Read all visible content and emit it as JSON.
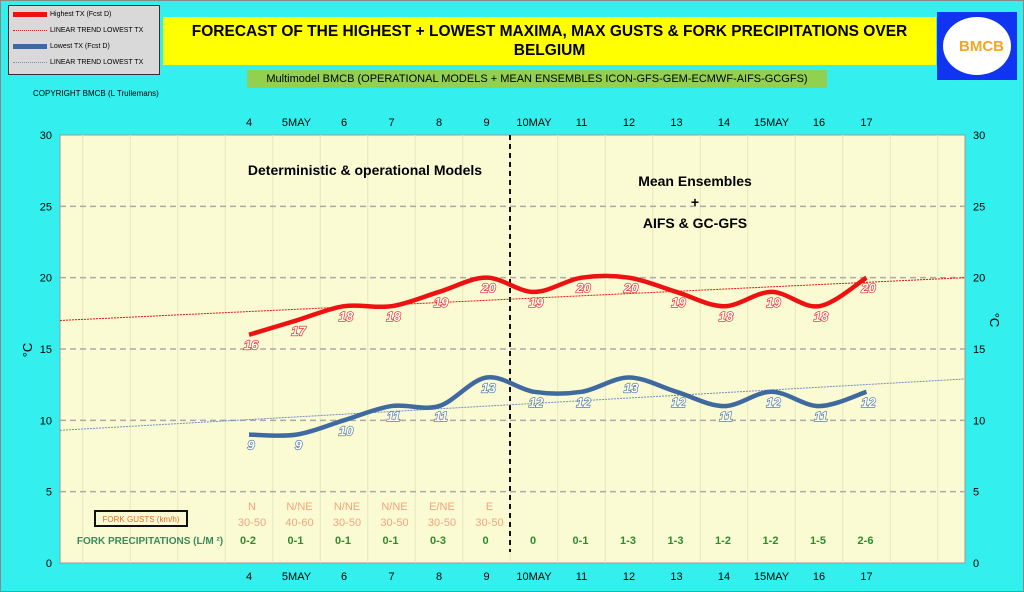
{
  "legend": [
    {
      "label": "Highest TX (Fcst D)",
      "color": "#ee1111",
      "style": "thick"
    },
    {
      "label": "LINEAR TREND LOWEST  TX",
      "color": "#ee1111",
      "style": "dotted"
    },
    {
      "label": "Lowest TX (Fcst D)",
      "color": "#3f6aa0",
      "style": "thick"
    },
    {
      "label": "LINEAR TREND LOWEST TX",
      "color": "#6f8fc0",
      "style": "dotted"
    }
  ],
  "title": "FORECAST OF THE HIGHEST + LOWEST MAXIMA, MAX GUSTS & FORK PRECIPITATIONS OVER BELGIUM",
  "logo_text": "BMCB",
  "subtitle": "Multimodel BMCB (OPERATIONAL MODELS + MEAN ENSEMBLES  ICON-GFS-GEM-ECMWF-AIFS-GCGFS)",
  "copyright": "COPYRIGHT BMCB (L Trullemans)",
  "chart_data": {
    "type": "line",
    "categories": [
      "4",
      "5MAY",
      "6",
      "7",
      "8",
      "9",
      "10MAY",
      "11",
      "12",
      "13",
      "14",
      "15MAY",
      "16",
      "17"
    ],
    "series": [
      {
        "name": "Highest TX (Fcst D)",
        "color": "#ee1111",
        "values": [
          16,
          17,
          18,
          18,
          19,
          20,
          19,
          20,
          20,
          19,
          18,
          19,
          18,
          20
        ]
      },
      {
        "name": "Lowest TX (Fcst D)",
        "color": "#3f6aa0",
        "values": [
          9,
          9,
          10,
          11,
          11,
          13,
          12,
          12,
          13,
          12,
          11,
          12,
          11,
          12
        ]
      }
    ],
    "trends": [
      {
        "color": "#ee1111",
        "start": 17,
        "end": 20
      },
      {
        "color": "#6f8fc0",
        "start": 9.3,
        "end": 12.9
      }
    ],
    "ylim": [
      0,
      30
    ],
    "yticks": [
      0,
      5,
      10,
      15,
      20,
      25,
      30
    ],
    "ylabel": "°C",
    "grid": true,
    "annotations": {
      "left": "Deterministic & operational Models",
      "right": [
        "Mean Ensembles",
        "+",
        "AIFS & GC-GFS"
      ]
    },
    "gusts_label": "FORK GUSTS (km/h)",
    "gusts_dir": [
      "N",
      "N/NE",
      "N/NE",
      "N/NE",
      "E/NE",
      "E"
    ],
    "gusts_speed": [
      "30-50",
      "40-60",
      "30-50",
      "30-50",
      "30-50",
      "30-50"
    ],
    "precip_label": "FORK PRECIPITATIONS (L/M ²)",
    "precip": [
      "0-2",
      "0-1",
      "0-1",
      "0-1",
      "0-3",
      "0",
      "0",
      "0-1",
      "1-3",
      "1-3",
      "1-2",
      "1-2",
      "1-5",
      "2-6"
    ]
  }
}
